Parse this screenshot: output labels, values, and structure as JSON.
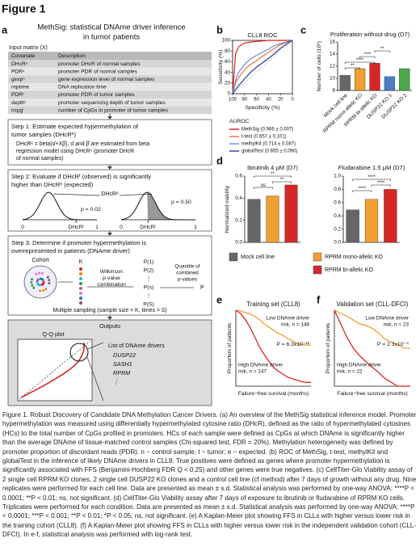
{
  "figure_title": "Figure 1",
  "panel_a": {
    "label": "a",
    "title": [
      "MethSig: statistical DNAme driver inference",
      "in tumor patients"
    ],
    "input_label": "Input matrix (X)",
    "table": {
      "header": [
        "Covariate",
        "Description"
      ],
      "rows": [
        [
          "DHcRⁿ",
          "promoter DHcR of normal samples"
        ],
        [
          "PDRⁿ",
          "promoter PDR of normal samples"
        ],
        [
          "gexpⁿ",
          "gene expression level of normal samples"
        ],
        [
          "reptime",
          "DNA replication time"
        ],
        [
          "PDRᵗ",
          "promoter PDR of tumor samples"
        ],
        [
          "depthᵗ",
          "promoter sequencing depth of tumor samples"
        ],
        [
          "ncpgⁱ",
          "number of CpGs in promoter of tumor samples"
        ]
      ]
    },
    "step1": {
      "title": [
        "Step 1: Estimate expected hypermethylation of",
        "tumor samples (DHcRᵉ)"
      ],
      "body": [
        "DHcRᵉ = beta(α̂+Xβ̂), α̂ and β̂ are estimated from beta",
        "regression model using DHcRⁿ (promoter DHcR",
        "of normal samples)"
      ]
    },
    "step2": {
      "title": [
        "Step 2: Evaluate if DHcRᵗ (observed) is significantly",
        "higher than DHcRᵉ (expected)"
      ],
      "expected_label": "DHcRᵉ",
      "left": {
        "p": "p = 0.02",
        "zero": "0",
        "observed": "DHcRᵗ",
        "one": "1"
      },
      "right": {
        "p": "p = 0.50",
        "zero": "0",
        "observed": "DHcRᵗ",
        "one": "1"
      }
    },
    "step3": {
      "title": [
        "Step 3: Determine if promoter hypermethylation is",
        "overrepresented in patients (DNAme driver)"
      ],
      "cohort": "Cohort",
      "k": "K",
      "method": [
        "Wilkinson",
        "p-value",
        "combination"
      ],
      "pvalues": [
        "P(1)",
        "P(2)",
        "⋮",
        "P(s)",
        "⋮",
        "P(S)"
      ],
      "quantile": [
        "Quantile of",
        "combined",
        "p-values"
      ],
      "p": "P",
      "footer": "Multiple sampling (sample size = K, times = S)"
    },
    "outputs": {
      "title": "Outputs",
      "qq": "Q-Q plot",
      "list_title": "List of DNAme drivers",
      "genes": [
        "DUSP22",
        "SASH1",
        "RPRM",
        "⋮"
      ]
    }
  },
  "chart_data": [
    {
      "type": "line",
      "label": "b",
      "title": "CLL8 ROC",
      "xlabel": "Specificity (%)",
      "ylabel": "Sensitivity (%)",
      "xlim": [
        100,
        0
      ],
      "ylim": [
        0,
        100
      ],
      "xticks": [
        100,
        80,
        60,
        40,
        20,
        0
      ],
      "yticks": [
        0,
        20,
        40,
        60,
        80,
        100
      ],
      "legend_title": "AUROC",
      "x": [
        100,
        95,
        90,
        80,
        70,
        60,
        50,
        40,
        30,
        20,
        10,
        0
      ],
      "series": [
        {
          "name": "MethSig (0.966 ± 0.007)",
          "color": "#e41a1c",
          "values": [
            0,
            75,
            88,
            95,
            97,
            98,
            99,
            100,
            100,
            100,
            100,
            100
          ]
        },
        {
          "name": "t-test (0.657 ± 0.101)",
          "color": "#f46d43",
          "values": [
            0,
            20,
            30,
            45,
            55,
            62,
            70,
            78,
            85,
            92,
            96,
            100
          ]
        },
        {
          "name": "methylKit (0.714 ± 0.087)",
          "color": "#6a8fd0",
          "values": [
            0,
            25,
            40,
            55,
            65,
            72,
            78,
            84,
            90,
            94,
            97,
            100
          ]
        },
        {
          "name": "globalTest (0.655 ± 0.090)",
          "color": "#283a8c",
          "values": [
            0,
            8,
            15,
            28,
            40,
            50,
            58,
            66,
            75,
            85,
            93,
            100
          ]
        }
      ]
    },
    {
      "type": "bar",
      "label": "c",
      "title": "Proliferation without drug (D7)",
      "ylabel": "Number of cells (10⁶)",
      "categories": [
        "Mock cell line",
        "RPRM mono-allelic KO",
        "RPRM bi-allelic KO",
        "DUSP22 KO 1",
        "DUSP22 KO 2"
      ],
      "values": [
        10.5,
        11.6,
        12.5,
        10.3,
        11.6
      ],
      "colors": [
        "#666666",
        "#f0a030",
        "#d62728",
        "#4a7cc0",
        "#4aaa4a"
      ],
      "ylim": [
        8,
        16
      ],
      "yticks": [
        8,
        10,
        12,
        14,
        16
      ],
      "significance": [
        "**",
        "****",
        "****",
        "**"
      ]
    },
    {
      "type": "bar",
      "label": "d",
      "title": "Ibrutinib 4 μM (D7)",
      "ylabel": "Normalized viability",
      "ylim": [
        0,
        0.6
      ],
      "yticks": [
        {
          "value": 0,
          "label": "0.0"
        },
        {
          "value": 0.2,
          "label": "0.2"
        },
        {
          "value": 0.4,
          "label": "0.4"
        },
        {
          "value": 0.6,
          "label": "0.6"
        }
      ],
      "series": [
        {
          "name": "Mock cell line",
          "color": "#666666",
          "values": [
            0.39
          ]
        },
        {
          "name": "RPRM mono-allelic KO",
          "color": "#f0a030",
          "values": [
            0.42
          ]
        },
        {
          "name": "RPRM bi-allelic KO",
          "color": "#d62728",
          "values": [
            0.52
          ]
        }
      ],
      "significance": [
        "ns",
        "**",
        "**"
      ]
    },
    {
      "type": "bar",
      "title": "Fludarabine 1.5 μM (D7)",
      "ylim": [
        0,
        1
      ],
      "yticks": [
        {
          "value": 0,
          "label": "0.0"
        },
        {
          "value": 0.2,
          "label": "0.2"
        },
        {
          "value": 0.4,
          "label": "0.4"
        },
        {
          "value": 0.6,
          "label": "0.6"
        },
        {
          "value": 0.8,
          "label": "0.8"
        },
        {
          "value": 1,
          "label": "1.0"
        }
      ],
      "series": [
        {
          "color": "#666666",
          "values": [
            0.49
          ]
        },
        {
          "color": "#f0a030",
          "values": [
            0.65
          ]
        },
        {
          "color": "#d62728",
          "values": [
            0.8
          ]
        }
      ],
      "significance": [
        "****",
        "****",
        "****"
      ]
    },
    {
      "type": "km",
      "label": "e",
      "title": "Training set (CLL8)",
      "xlabel": "Failure−free survival (months)",
      "ylabel": "Proportion of patients",
      "xlim": [
        0,
        80
      ],
      "ylim": [
        0,
        1
      ],
      "annotation": "P = 6.3x10⁻¹²",
      "x": [
        0,
        5,
        10,
        15,
        20,
        25,
        30,
        35,
        40,
        45,
        50,
        55,
        60,
        65,
        70,
        75,
        80
      ],
      "series": [
        {
          "name": [
            "Low DNAme driver",
            "risk, n = 148"
          ],
          "color": "#f0a030",
          "values": [
            1,
            0.99,
            0.97,
            0.95,
            0.92,
            0.88,
            0.82,
            0.78,
            0.74,
            0.7,
            0.67,
            0.63,
            0.6,
            0.56,
            0.55,
            0.54,
            0.54
          ]
        },
        {
          "name": [
            "High DNAme driver",
            "risk, n = 147"
          ],
          "color": "#d62728",
          "values": [
            1,
            0.96,
            0.88,
            0.78,
            0.65,
            0.52,
            0.42,
            0.33,
            0.25,
            0.2,
            0.16,
            0.12,
            0.1,
            0.08,
            0.06,
            0.05,
            0.05
          ]
        }
      ]
    },
    {
      "type": "km",
      "label": "f",
      "title": "Validation set (CLL-DFCI)",
      "xlabel": "Failure−free survival (months)",
      "ylabel": "Proportion of patients",
      "xlim": [
        0,
        60
      ],
      "ylim": [
        0,
        1
      ],
      "annotation": "P = 2.3x10⁻⁴",
      "x": [
        0,
        5,
        10,
        15,
        20,
        25,
        30,
        35,
        40,
        45,
        50,
        55,
        60
      ],
      "series": [
        {
          "name": [
            "Low DNAme driver",
            "risk, n = 23"
          ],
          "color": "#f0a030",
          "values": [
            1,
            0.96,
            0.92,
            0.87,
            0.82,
            0.8,
            0.76,
            0.7,
            0.62,
            0.58,
            0.55,
            0.5,
            0.5
          ]
        },
        {
          "name": [
            "High DNAme driver",
            "risk, n = 22"
          ],
          "color": "#d62728",
          "values": [
            1,
            0.82,
            0.64,
            0.5,
            0.4,
            0.32,
            0.25,
            0.18,
            0.1,
            0.05,
            0,
            0,
            0
          ]
        }
      ]
    }
  ],
  "caption": "Figure 1. Robust Discovery of Candidate DNA Methylation Cancer Drivers. (a) An overview of the MethSig statistical inference model. Promoter hypermethylation was measured using differentially hypermethylated cytosine ratio (DHcR), defined as the ratio of hypermethylated cytosines (HCs) to the total number of CpGs profiled in promoters. HCs of each sample were defined as CpGs at which DNAme is significantly higher than the average DNAme of tissue-matched control samples (Chi-squared test, FDR = 20%). Methylation heterogeneity was defined by promoter proportion of discordant reads (PDR). n ~ control sample; t ~ tumor; e ~ expected. (b) ROC of MethSig, t-test, methylKit and globalTest in the inference of likely DNAme drivers in CLL8. True positives were defined as genes where promoter hypermethylation is significantly associated with FFS (Benjamini-Hochberg FDR Q < 0.25) and other genes were true negatives. (c) CellTiter-Glo Viability assay of 2 single cell RPRM KO clones, 2 single cell DUSP22 KO clones and a control cell line (cf method) after 7 days of growth without any drug. Nine replicates were performed for each cell line. Data are presented as mean ± s.d. Statistical analysis was performed by one-way ANOVA: ****P < 0.0001; **P < 0.01; ns, not significant. (d) CellTiter-Glo Viability assay after 7 days of exposure to ibrutinib or fludarabine of RPRM KO cells. Triplicates were performed for each condition. Data are presented as mean ± s.d. Statistical analysis was performed by one-way ANOVA: ****P < 0.0001; ***P < 0.001; **P < 0.01; *P < 0.05; ns, not significant. (e) A Kaplan-Meier plot showing FFS in CLLs with higher versus lower risk in the training cohort (CLL8). (f) A Kaplan-Meier plot showing FFS in CLLs with higher versus lower risk in the independent validation cohort (CLL-DFCI). In e-f, statistical analysis was performed with log-rank test."
}
